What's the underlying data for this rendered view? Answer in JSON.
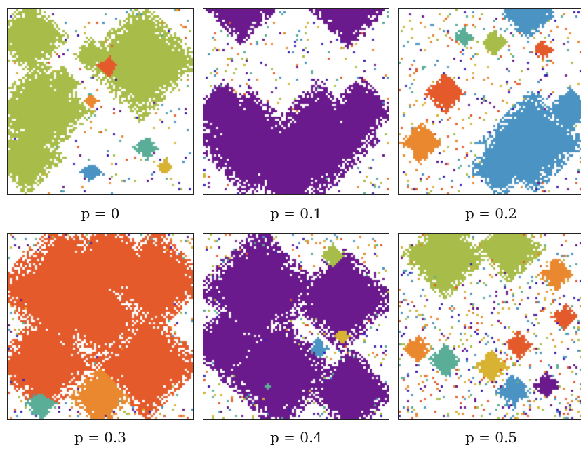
{
  "figure": {
    "panels": [
      {
        "label": "p = 0",
        "var": "p",
        "value": "0",
        "dominant": "#a8bd49",
        "others": [
          "#e45a2a",
          "#e9882f",
          "#5aad96",
          "#d8b333",
          "#4b93c3"
        ]
      },
      {
        "label": "p = 0.1",
        "var": "p",
        "value": "0.1",
        "dominant": "#6a1a8c",
        "others": [
          "#a8bd49",
          "#e9882f",
          "#5aad96",
          "#4b93c3"
        ]
      },
      {
        "label": "p = 0.2",
        "var": "p",
        "value": "0.2",
        "dominant": "#4b93c3",
        "others": [
          "#e45a2a",
          "#e9882f",
          "#5aad96",
          "#a8bd49"
        ]
      },
      {
        "label": "p = 0.3",
        "var": "p",
        "value": "0.3",
        "dominant": "#e45a2a",
        "others": [
          "#e9882f",
          "#5aad96",
          "#a8bd49",
          "#4b93c3"
        ]
      },
      {
        "label": "p = 0.4",
        "var": "p",
        "value": "0.4",
        "dominant": "#6a1a8c",
        "others": [
          "#a8bd49",
          "#d8b333",
          "#4b93c3",
          "#5aad96",
          "#e9882f"
        ]
      },
      {
        "label": "p = 0.5",
        "var": "p",
        "value": "0.5",
        "dominant": "#a8bd49",
        "others": [
          "#e9882f",
          "#e45a2a",
          "#5aad96",
          "#d8b333",
          "#4b93c3",
          "#6a1a8c"
        ]
      }
    ],
    "scatter_colors": [
      "#3b1fb5",
      "#e45a2a",
      "#a8bd49",
      "#4b93c3",
      "#5aad96",
      "#e9882f",
      "#d8b333",
      "#6a1a8c"
    ]
  }
}
